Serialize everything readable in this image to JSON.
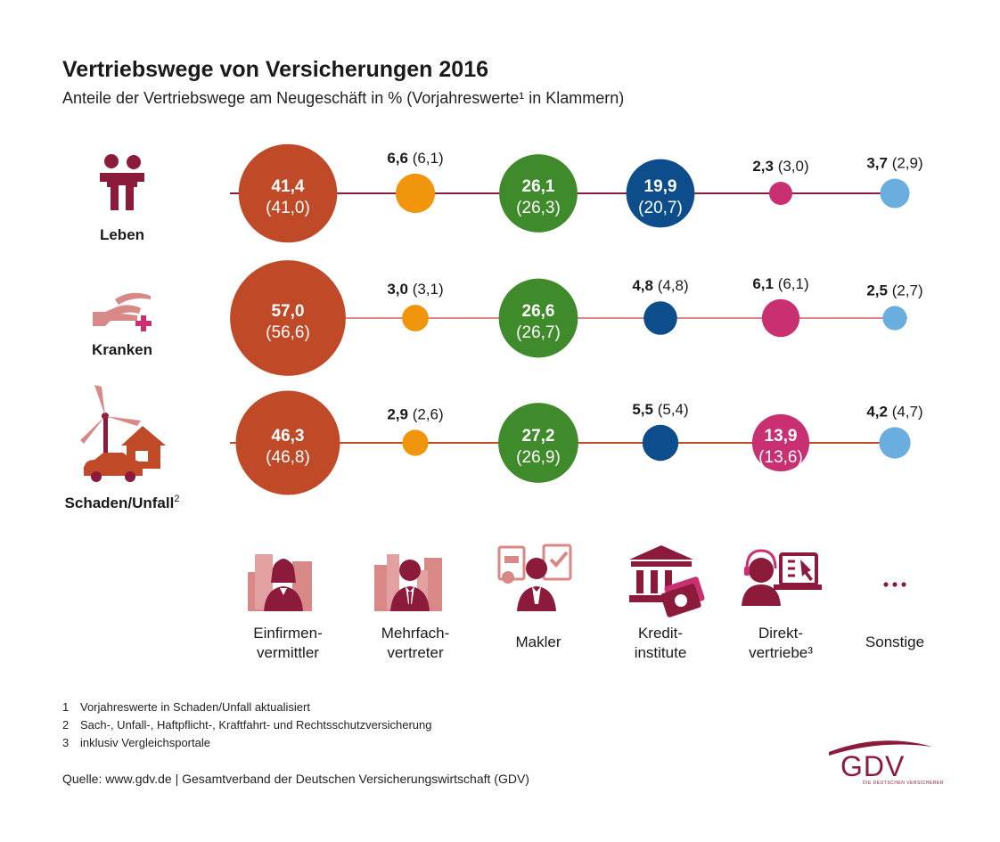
{
  "title": "Vertriebswege von Versicherungen 2016",
  "subtitle": "Anteile der Vertriebswege am Neugeschäft in % (Vorjahreswerte¹ in Klammern)",
  "chart_data": {
    "type": "bubble",
    "title": "Vertriebswege von Versicherungen 2016",
    "subtitle": "Anteile der Vertriebswege am Neugeschäft in % (Vorjahreswerte¹ in Klammern)",
    "categories": [
      {
        "label_lines": [
          "Einfirmen-",
          "vermittler"
        ],
        "icon": "businesswoman-buildings-icon",
        "color": "#c04a28"
      },
      {
        "label_lines": [
          "Mehrfach-",
          "vertreter"
        ],
        "icon": "businessman-buildings-icon",
        "color": "#f0950c"
      },
      {
        "label_lines": [
          "Makler"
        ],
        "icon": "broker-documents-icon",
        "color": "#3f8a2a"
      },
      {
        "label_lines": [
          "Kredit-",
          "institute"
        ],
        "icon": "bank-money-icon",
        "color": "#0d4d8c"
      },
      {
        "label_lines": [
          "Direkt-",
          "vertriebe³"
        ],
        "icon": "headset-agent-icon",
        "color": "#c93071"
      },
      {
        "label_lines": [
          "Sonstige"
        ],
        "icon": "ellipsis-icon",
        "color": "#6aaee0"
      }
    ],
    "series": [
      {
        "name": "Leben",
        "icon": "family-icon",
        "line_color": "#8b1a3b",
        "values": [
          41.4,
          6.6,
          26.1,
          19.9,
          2.3,
          3.7
        ],
        "labels": [
          "41,4",
          "6,6",
          "26,1",
          "19,9",
          "2,3",
          "3,7"
        ],
        "prev_labels": [
          "(41,0)",
          "(6,1)",
          "(26,3)",
          "(20,7)",
          "(3,0)",
          "(2,9)"
        ]
      },
      {
        "name": "Kranken",
        "icon": "hand-health-icon",
        "line_color": "#d98888",
        "values": [
          57.0,
          3.0,
          26.6,
          4.8,
          6.1,
          2.5
        ],
        "labels": [
          "57,0",
          "3,0",
          "26,6",
          "4,8",
          "6,1",
          "2,5"
        ],
        "prev_labels": [
          "(56,6)",
          "(3,1)",
          "(26,7)",
          "(4,8)",
          "(6,1)",
          "(2,7)"
        ]
      },
      {
        "name": "Schaden/Unfall",
        "name_sup": "2",
        "icon": "windmill-house-car-icon",
        "line_color": "#c04a28",
        "values": [
          46.3,
          2.9,
          27.2,
          5.5,
          13.9,
          4.2
        ],
        "labels": [
          "46,3",
          "2,9",
          "27,2",
          "5,5",
          "13,9",
          "4,2"
        ],
        "prev_labels": [
          "(46,8)",
          "(2,6)",
          "(26,9)",
          "(5,4)",
          "(13,6)",
          "(4,7)"
        ]
      }
    ]
  },
  "footnotes": [
    {
      "num": "1",
      "text": "Vorjahreswerte in Schaden/Unfall aktualisiert"
    },
    {
      "num": "2",
      "text": "Sach-, Unfall-, Haftpflicht-, Kraftfahrt- und Rechtsschutzversicherung"
    },
    {
      "num": "3",
      "text": "inklusiv Vergleichsportale"
    }
  ],
  "source": "Quelle: www.gdv.de | Gesamtverband der Deutschen Versicherungswirtschaft (GDV)",
  "logo": {
    "text": "GDV",
    "subtext": "DIE DEUTSCHEN VERSICHERER",
    "color": "#8b1a3b"
  }
}
